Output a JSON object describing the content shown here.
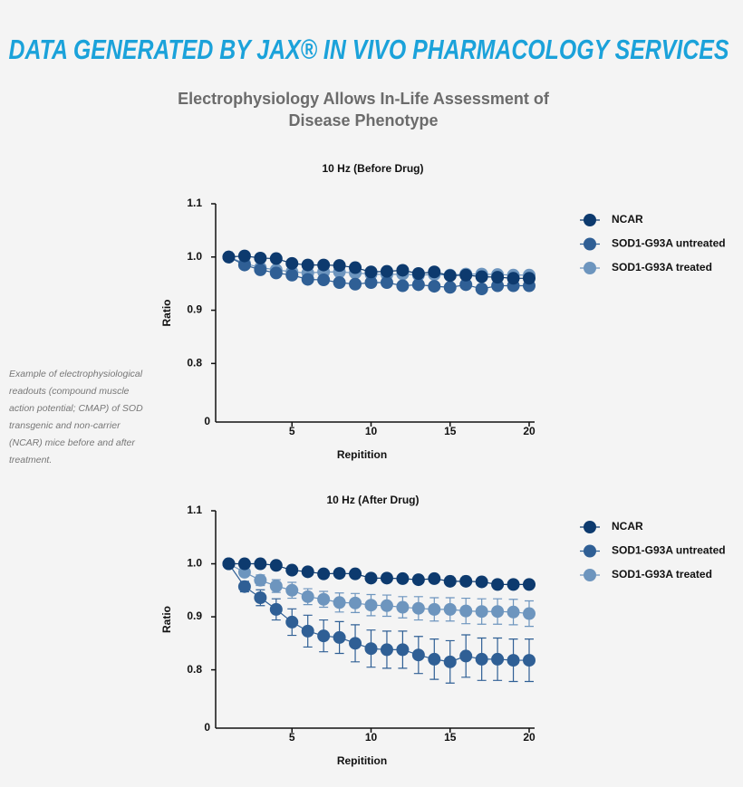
{
  "page_title": "DATA GENERATED BY JAX® IN VIVO PHARMACOLOGY SERVICES",
  "heading": [
    "Electrophysiology Allows In-Life Assessment of",
    "Disease Phenotype"
  ],
  "caption": [
    "Example of electrophysiological",
    "readouts (compound muscle",
    "action potential; CMAP) of SOD",
    "transgenic and non-carrier",
    "(NCAR) mice before and after",
    "treatment."
  ],
  "chart_data": [
    {
      "type": "line",
      "title": "10 Hz (Before Drug)",
      "x_label": "Repitition",
      "y_label": "Ratio",
      "x": [
        1,
        2,
        3,
        4,
        5,
        6,
        7,
        8,
        9,
        10,
        11,
        12,
        13,
        14,
        15,
        16,
        17,
        18,
        19,
        20
      ],
      "xlim": [
        0,
        20
      ],
      "xticks": [
        5,
        10,
        15,
        20
      ],
      "ylim": [
        0,
        1.1
      ],
      "y_break": [
        0,
        0.69
      ],
      "yticks": [
        0,
        0.8,
        0.9,
        {
          "value": 1,
          "label": "1.0"
        },
        1.1
      ],
      "legend": "right",
      "series": [
        {
          "name": "NCAR",
          "color": "#0d3a6e",
          "values": [
            1.0,
            1.002,
            0.998,
            0.997,
            0.988,
            0.985,
            0.985,
            0.984,
            0.98,
            0.972,
            0.973,
            0.975,
            0.969,
            0.972,
            0.965,
            0.966,
            0.963,
            0.962,
            0.96,
            0.96
          ]
        },
        {
          "name": "SOD1-G93A untreated",
          "color": "#2f5f95",
          "values": [
            1.0,
            0.985,
            0.976,
            0.97,
            0.966,
            0.958,
            0.957,
            0.952,
            0.949,
            0.952,
            0.952,
            0.946,
            0.948,
            0.945,
            0.943,
            0.948,
            0.94,
            0.946,
            0.946,
            0.946
          ]
        },
        {
          "name": "SOD1-G93A treated",
          "color": "#6d95be",
          "values": [
            1.0,
            0.988,
            0.98,
            0.976,
            0.972,
            0.97,
            0.972,
            0.972,
            0.97,
            0.968,
            0.967,
            0.968,
            0.966,
            0.967,
            0.966,
            0.968,
            0.968,
            0.967,
            0.966,
            0.966
          ]
        }
      ]
    },
    {
      "type": "line",
      "title": "10 Hz (After Drug)",
      "x_label": "Repitition",
      "y_label": "Ratio",
      "x": [
        1,
        2,
        3,
        4,
        5,
        6,
        7,
        8,
        9,
        10,
        11,
        12,
        13,
        14,
        15,
        16,
        17,
        18,
        19,
        20
      ],
      "xlim": [
        0,
        20
      ],
      "xticks": [
        5,
        10,
        15,
        20
      ],
      "ylim": [
        0,
        1.1
      ],
      "y_break": [
        0,
        0.69
      ],
      "yticks": [
        0,
        0.8,
        0.9,
        {
          "value": 1,
          "label": "1.0"
        },
        1.1
      ],
      "legend": "right",
      "series": [
        {
          "name": "NCAR",
          "color": "#0d3a6e",
          "values": [
            1.0,
            1.0,
            1.0,
            0.997,
            0.988,
            0.985,
            0.981,
            0.982,
            0.981,
            0.973,
            0.973,
            0.972,
            0.97,
            0.972,
            0.967,
            0.967,
            0.966,
            0.961,
            0.961,
            0.961
          ]
        },
        {
          "name": "SOD1-G93A untreated",
          "color": "#2f5f95",
          "values": [
            1.0,
            0.957,
            0.936,
            0.914,
            0.89,
            0.873,
            0.864,
            0.861,
            0.85,
            0.84,
            0.838,
            0.838,
            0.828,
            0.82,
            0.815,
            0.826,
            0.82,
            0.82,
            0.818,
            0.818
          ],
          "errors": [
            0,
            0.01,
            0.015,
            0.02,
            0.025,
            0.03,
            0.03,
            0.03,
            0.035,
            0.035,
            0.035,
            0.035,
            0.035,
            0.038,
            0.04,
            0.04,
            0.04,
            0.04,
            0.04,
            0.04
          ]
        },
        {
          "name": "SOD1-G93A treated",
          "color": "#6d95be",
          "values": [
            1.0,
            0.984,
            0.969,
            0.958,
            0.95,
            0.938,
            0.933,
            0.927,
            0.926,
            0.922,
            0.921,
            0.918,
            0.916,
            0.914,
            0.914,
            0.911,
            0.91,
            0.91,
            0.909,
            0.906
          ],
          "errors": [
            0,
            0.005,
            0.01,
            0.012,
            0.015,
            0.015,
            0.015,
            0.018,
            0.018,
            0.02,
            0.02,
            0.02,
            0.022,
            0.022,
            0.022,
            0.024,
            0.024,
            0.024,
            0.024,
            0.024
          ]
        }
      ]
    }
  ]
}
